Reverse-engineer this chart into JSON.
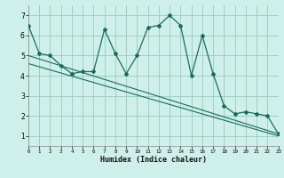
{
  "xlabel": "Humidex (Indice chaleur)",
  "bg_color": "#cff0ea",
  "grid_color": "#99ccbb",
  "line_color": "#1a6b5a",
  "xlim": [
    0,
    23
  ],
  "ylim": [
    0.5,
    7.5
  ],
  "xticks": [
    0,
    1,
    2,
    3,
    4,
    5,
    6,
    7,
    8,
    9,
    10,
    11,
    12,
    13,
    14,
    15,
    16,
    17,
    18,
    19,
    20,
    21,
    22,
    23
  ],
  "yticks": [
    1,
    2,
    3,
    4,
    5,
    6,
    7
  ],
  "main_series": {
    "x": [
      0,
      1,
      2,
      3,
      4,
      5,
      6,
      7,
      8,
      9,
      10,
      11,
      12,
      13,
      14,
      15,
      16,
      17,
      18,
      19,
      20,
      21,
      22,
      23
    ],
    "y": [
      6.5,
      5.1,
      5.0,
      4.5,
      4.1,
      4.2,
      4.2,
      6.3,
      5.1,
      4.1,
      5.0,
      6.4,
      6.5,
      7.0,
      6.5,
      4.0,
      6.0,
      4.1,
      2.5,
      2.1,
      2.2,
      2.1,
      2.0,
      1.1
    ]
  },
  "trend1": {
    "x": [
      0,
      23
    ],
    "y": [
      5.0,
      1.1
    ]
  },
  "trend2": {
    "x": [
      0,
      23
    ],
    "y": [
      4.6,
      1.0
    ]
  }
}
